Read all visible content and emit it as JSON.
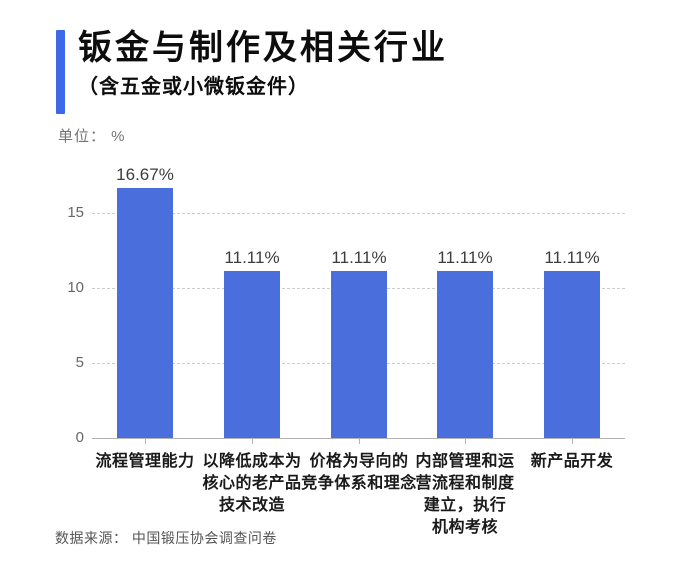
{
  "header": {
    "title": "钣金与制作及相关行业",
    "subtitle": "（含五金或小微钣金件）"
  },
  "unit_label": "单位： %",
  "source_label": "数据来源： 中国锻压协会调查问卷",
  "colors": {
    "accent": "#3d68e8",
    "bar": "#4a6edc",
    "gridline": "#cccccc",
    "axis_line": "#b3b3b3",
    "y_tick_label": "#666666",
    "value_label": "#3d3d3d",
    "category_label": "#1a1a1a"
  },
  "chart_data": {
    "type": "bar",
    "title": "钣金与制作及相关行业",
    "subtitle": "（含五金或小微钣金件）",
    "unit": "%",
    "categories": [
      "流程管理能力",
      "以降低成本为核心的老产品技术改造",
      "价格为导向的竞争体系和理念",
      "内部管理和运营流程和制度建立，执行机构考核",
      "新产品开发"
    ],
    "category_lines": [
      [
        "流程管理能力"
      ],
      [
        "以降低成本为",
        "核心的老产品",
        "技术改造"
      ],
      [
        "价格为导向的",
        "竞争体系和理念"
      ],
      [
        "内部管理和运",
        "营流程和制度",
        "建立，执行",
        "机构考核"
      ],
      [
        "新产品开发"
      ]
    ],
    "values": [
      16.67,
      11.11,
      11.11,
      11.11,
      11.11
    ],
    "value_labels": [
      "16.67%",
      "11.11%",
      "11.11%",
      "11.11%",
      "11.11%"
    ],
    "y_ticks": [
      0,
      5,
      10,
      15
    ],
    "y_tick_labels": [
      "0",
      "5",
      "10",
      "15"
    ],
    "ylim": [
      0,
      17.2
    ],
    "xlabel": "",
    "ylabel": "单位： %",
    "grid": "horizontal-dashed",
    "legend_position": "none",
    "source": "数据来源： 中国锻压协会调查问卷"
  }
}
